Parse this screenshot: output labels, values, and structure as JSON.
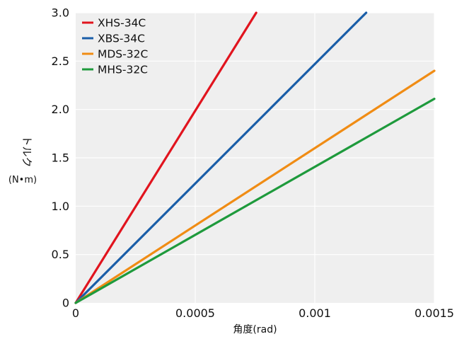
{
  "chart_data": {
    "type": "line",
    "title": "",
    "xlabel": "角度(rad)",
    "ylabel": {
      "lines": [
        "トルク",
        "(N•m)"
      ]
    },
    "xlim": [
      0,
      0.0015
    ],
    "ylim": [
      0,
      3.0
    ],
    "x_ticks": [
      0,
      0.0005,
      0.001,
      0.0015
    ],
    "x_tick_labels": [
      "0",
      "0.0005",
      "0.001",
      "0.0015"
    ],
    "y_ticks": [
      0,
      0.5,
      1.0,
      1.5,
      2.0,
      2.5,
      3.0
    ],
    "y_tick_labels": [
      "0",
      "0.5",
      "1.0",
      "1.5",
      "2.0",
      "2.5",
      "3.0"
    ],
    "grid": true,
    "legend_position": "top-left",
    "series": [
      {
        "name": "XHS-34C",
        "color": "#e1141e",
        "x": [
          0,
          0.000755
        ],
        "y": [
          0,
          3.0
        ]
      },
      {
        "name": "XBS-34C",
        "color": "#1a5ea8",
        "x": [
          0,
          0.001215
        ],
        "y": [
          0,
          3.0
        ]
      },
      {
        "name": "MDS-32C",
        "color": "#f08c14",
        "x": [
          0,
          0.0015
        ],
        "y": [
          0,
          2.4
        ]
      },
      {
        "name": "MHS-32C",
        "color": "#1e9a3c",
        "x": [
          0,
          0.0015
        ],
        "y": [
          0,
          2.11
        ]
      }
    ]
  }
}
